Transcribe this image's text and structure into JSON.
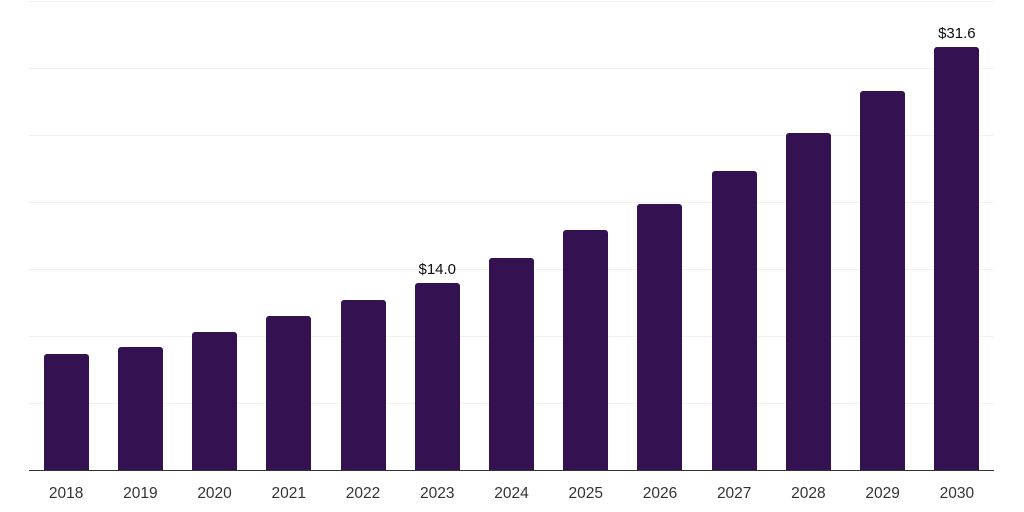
{
  "chart_data": {
    "type": "bar",
    "title": "",
    "xlabel": "",
    "ylabel": "",
    "categories": [
      "2018",
      "2019",
      "2020",
      "2021",
      "2022",
      "2023",
      "2024",
      "2025",
      "2026",
      "2027",
      "2028",
      "2029",
      "2030"
    ],
    "values": [
      8.7,
      9.2,
      10.3,
      11.5,
      12.7,
      14.0,
      15.8,
      17.9,
      19.9,
      22.3,
      25.2,
      28.3,
      31.6
    ],
    "bar_labels": {
      "2023": "$14.0",
      "2030": "$31.6"
    },
    "ylim": [
      0,
      35
    ],
    "gridline_step": 5,
    "grid": true,
    "legend": "none",
    "colors": {
      "bar": "#341150",
      "gridline": "#f1f1f4",
      "axis_line": "#333333",
      "tick_label": "#333333",
      "value_label": "#0d0d0d"
    }
  }
}
